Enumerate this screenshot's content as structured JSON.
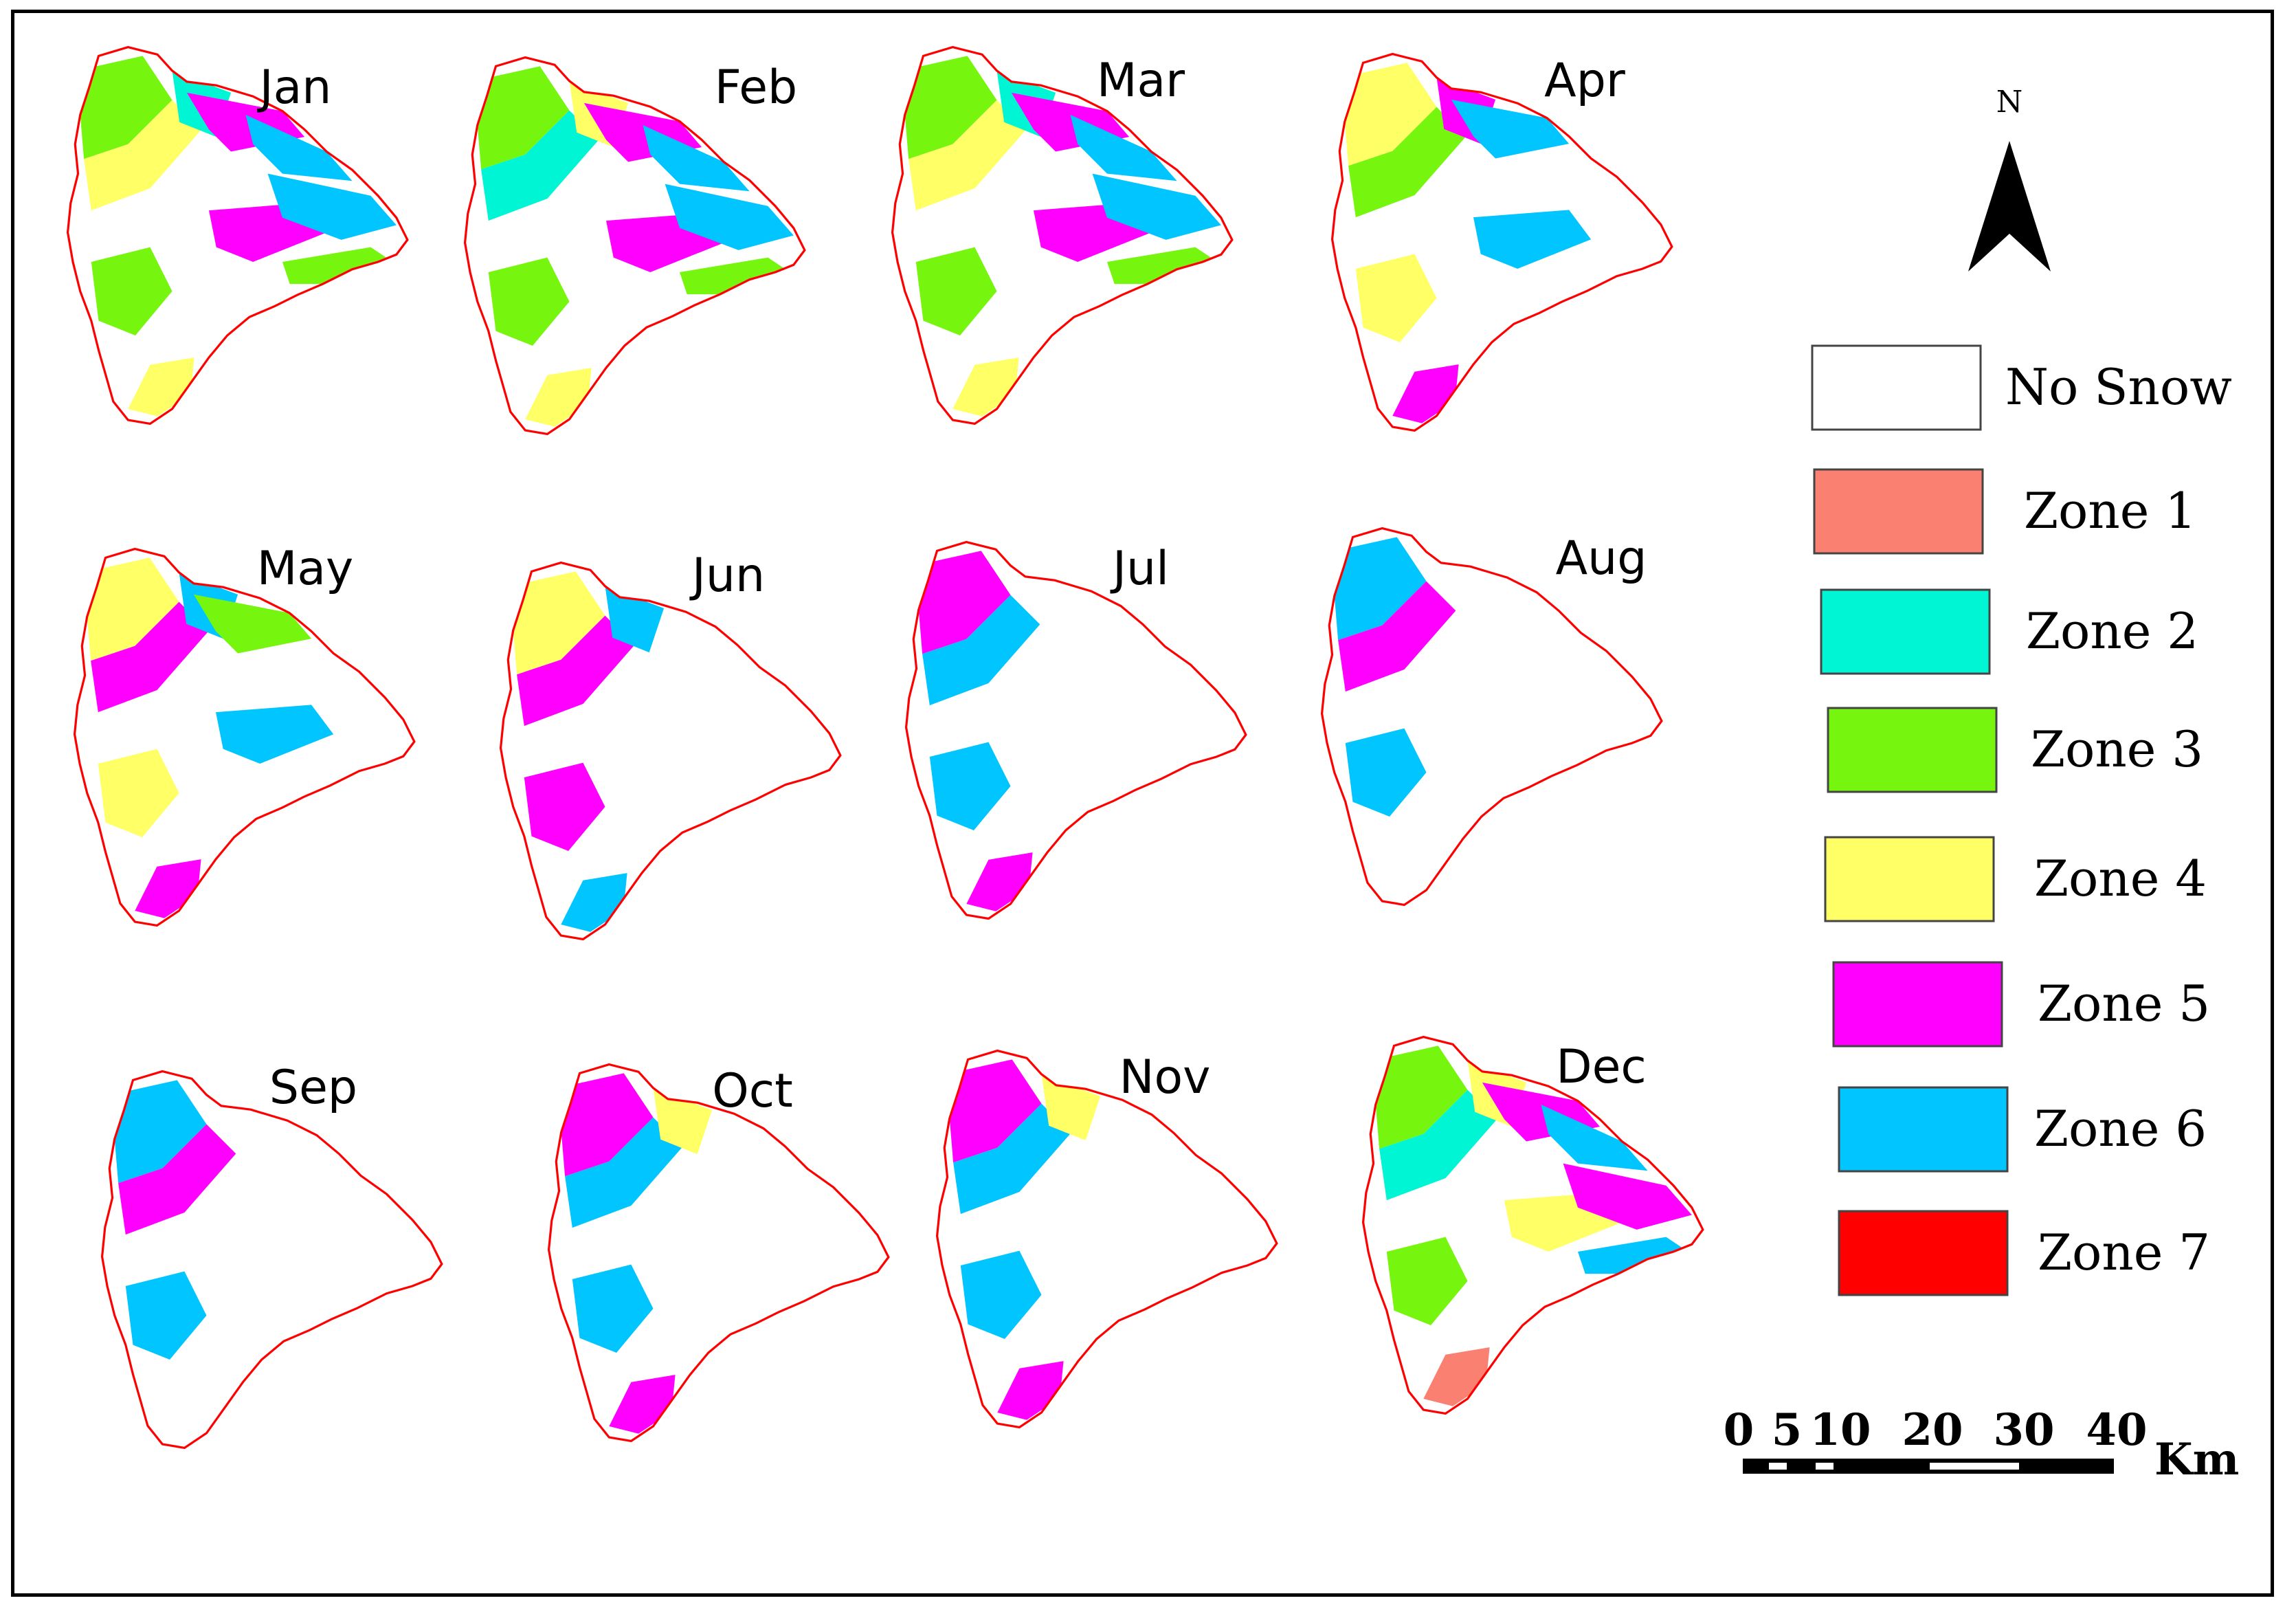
{
  "months": [
    {
      "label": "Jan",
      "cover": [
        "zone3",
        "zone4",
        "zone2",
        "zone5",
        "zone6",
        "zone3",
        "zone4",
        "zone5",
        "zone6",
        "zone3"
      ]
    },
    {
      "label": "Feb",
      "cover": [
        "zone3",
        "zone2",
        "zone4",
        "zone5",
        "zone6",
        "zone3",
        "zone4",
        "zone5",
        "zone6",
        "zone3"
      ]
    },
    {
      "label": "Mar",
      "cover": [
        "zone3",
        "zone4",
        "zone2",
        "zone5",
        "zone6",
        "zone3",
        "zone4",
        "zone5",
        "zone6",
        "zone3"
      ]
    },
    {
      "label": "Apr",
      "cover": [
        "zone4",
        "zone3",
        "zone5",
        "zone6",
        "none",
        "zone4",
        "zone5",
        "zone6",
        "none",
        "none"
      ]
    },
    {
      "label": "May",
      "cover": [
        "zone4",
        "zone5",
        "zone6",
        "zone3",
        "none",
        "zone4",
        "zone5",
        "zone6",
        "none",
        "none"
      ]
    },
    {
      "label": "Jun",
      "cover": [
        "zone4",
        "zone5",
        "zone6",
        "none",
        "none",
        "zone5",
        "zone6",
        "none",
        "none",
        "none"
      ]
    },
    {
      "label": "Jul",
      "cover": [
        "zone5",
        "zone6",
        "none",
        "none",
        "none",
        "zone6",
        "zone5",
        "none",
        "none",
        "none"
      ]
    },
    {
      "label": "Aug",
      "cover": [
        "zone6",
        "zone5",
        "none",
        "none",
        "none",
        "zone6",
        "none",
        "none",
        "none",
        "none"
      ]
    },
    {
      "label": "Sep",
      "cover": [
        "zone6",
        "zone5",
        "none",
        "none",
        "none",
        "zone6",
        "none",
        "none",
        "none",
        "none"
      ]
    },
    {
      "label": "Oct",
      "cover": [
        "zone5",
        "zone6",
        "zone4",
        "none",
        "none",
        "zone6",
        "zone5",
        "none",
        "none",
        "none"
      ]
    },
    {
      "label": "Nov",
      "cover": [
        "zone5",
        "zone6",
        "zone4",
        "none",
        "none",
        "zone6",
        "zone5",
        "none",
        "none",
        "none"
      ]
    },
    {
      "label": "Dec",
      "cover": [
        "zone3",
        "zone2",
        "zone4",
        "zone5",
        "zone6",
        "zone3",
        "zone1",
        "zone4",
        "zone5",
        "zone6"
      ]
    }
  ],
  "colors": {
    "none": "#ffffff",
    "zone1": "#fa8072",
    "zone2": "#00f5d4",
    "zone3": "#76f60e",
    "zone4": "#ffff66",
    "zone5": "#ff00ff",
    "zone6": "#00c5ff",
    "zone7": "#ff0000",
    "boundary": "#ff0000"
  },
  "legend": [
    {
      "key": "none",
      "label": "No Snow"
    },
    {
      "key": "zone1",
      "label": "Zone 1"
    },
    {
      "key": "zone2",
      "label": "Zone 2"
    },
    {
      "key": "zone3",
      "label": "Zone 3"
    },
    {
      "key": "zone4",
      "label": "Zone 4"
    },
    {
      "key": "zone5",
      "label": "Zone 5"
    },
    {
      "key": "zone6",
      "label": "Zone 6"
    },
    {
      "key": "zone7",
      "label": "Zone 7"
    }
  ],
  "north": {
    "label": "N"
  },
  "scale_bar": {
    "ticks": [
      "0",
      "5",
      "10",
      "20",
      "30",
      "40"
    ],
    "unit": "Km"
  }
}
